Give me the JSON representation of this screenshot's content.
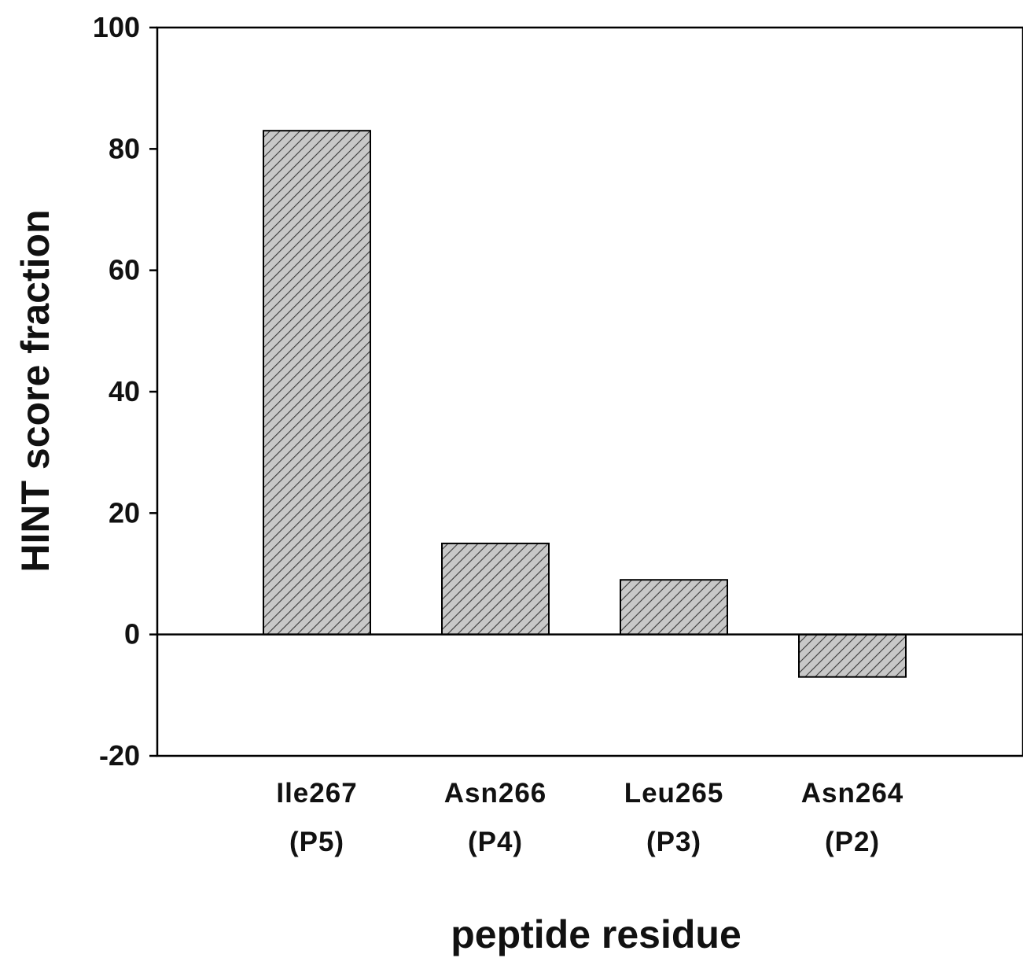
{
  "chart_data": {
    "type": "bar",
    "categories": [
      "Ile267",
      "Asn266",
      "Leu265",
      "Asn264"
    ],
    "category_sublabels": [
      "(P5)",
      "(P4)",
      "(P3)",
      "(P2)"
    ],
    "values": [
      83,
      15,
      9,
      -7
    ],
    "title": "",
    "xlabel": "peptide residue",
    "ylabel": "HINT score fraction",
    "ylim": [
      -20,
      100
    ],
    "yticks": [
      -20,
      0,
      20,
      40,
      60,
      80,
      100
    ],
    "zero_line": true,
    "grid": false,
    "legend": "none",
    "bar_fill": "#c8c8c8",
    "bar_hatch": "diagonal",
    "bar_stroke": "#000000"
  }
}
